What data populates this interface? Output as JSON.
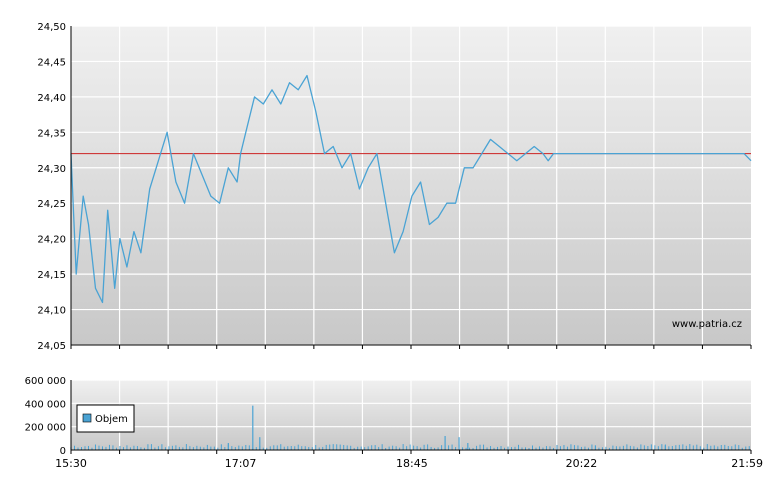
{
  "watermark": "www.patria.cz",
  "colors": {
    "line": "#4aa3d4",
    "reference": "#cc2222",
    "grid": "#ffffff",
    "axis": "#000000",
    "bg_top": "#f0f0f0",
    "bg_bottom": "#c8c8c8",
    "volume": "#4aa3d4"
  },
  "chart_data": [
    {
      "type": "line",
      "ylim": [
        24.05,
        24.5
      ],
      "y_ticks": [
        "24,50",
        "24,45",
        "24,40",
        "24,35",
        "24,30",
        "24,25",
        "24,20",
        "24,15",
        "24,10",
        "24,05"
      ],
      "reference_line": 24.32,
      "x_range": [
        "15:30",
        "21:59"
      ],
      "series": [
        {
          "x": [
            "15:30",
            "15:33",
            "15:37",
            "15:40",
            "15:44",
            "15:48",
            "15:51",
            "15:55",
            "15:58",
            "16:02",
            "16:06",
            "16:10",
            "16:15",
            "16:20",
            "16:25",
            "16:30",
            "16:35",
            "16:40",
            "16:45",
            "16:50",
            "16:55",
            "17:00",
            "17:05",
            "17:07",
            "17:10",
            "17:15",
            "17:20",
            "17:25",
            "17:30",
            "17:35",
            "17:40",
            "17:45",
            "17:50",
            "17:55",
            "18:00",
            "18:05",
            "18:10",
            "18:15",
            "18:20",
            "18:25",
            "18:30",
            "18:35",
            "18:40",
            "18:45",
            "18:50",
            "18:55",
            "19:00",
            "19:05",
            "19:10",
            "19:15",
            "19:20",
            "19:25",
            "19:30",
            "19:35",
            "19:40",
            "19:45",
            "19:50",
            "19:55",
            "20:00",
            "20:03",
            "20:06",
            "20:10",
            "20:15",
            "20:20",
            "20:22",
            "20:25",
            "20:30",
            "20:35",
            "20:40",
            "20:45",
            "20:50",
            "20:55",
            "21:00",
            "21:05",
            "21:10",
            "21:15",
            "21:20",
            "21:25",
            "21:30",
            "21:35",
            "21:40",
            "21:45",
            "21:50",
            "21:55",
            "21:59"
          ],
          "y": [
            24.32,
            24.15,
            24.26,
            24.22,
            24.13,
            24.11,
            24.24,
            24.13,
            24.2,
            24.16,
            24.21,
            24.18,
            24.27,
            24.31,
            24.35,
            24.28,
            24.25,
            24.32,
            24.29,
            24.26,
            24.25,
            24.3,
            24.28,
            24.32,
            24.35,
            24.4,
            24.39,
            24.41,
            24.39,
            24.42,
            24.41,
            24.43,
            24.38,
            24.32,
            24.33,
            24.3,
            24.32,
            24.27,
            24.3,
            24.32,
            24.25,
            24.18,
            24.21,
            24.26,
            24.28,
            24.22,
            24.23,
            24.25,
            24.25,
            24.3,
            24.3,
            24.32,
            24.34,
            24.33,
            24.32,
            24.31,
            24.32,
            24.33,
            24.32,
            24.31,
            24.32,
            24.32,
            24.32,
            24.32,
            24.32,
            24.32,
            24.32,
            24.32,
            24.32,
            24.32,
            24.32,
            24.32,
            24.32,
            24.32,
            24.32,
            24.32,
            24.32,
            24.32,
            24.32,
            24.32,
            24.32,
            24.32,
            24.32,
            24.32,
            24.31
          ]
        }
      ]
    },
    {
      "type": "bar",
      "ylim": [
        0,
        600000
      ],
      "y_ticks": [
        "600 000",
        "400 000",
        "200 000",
        "0"
      ],
      "x_ticks": [
        "15:30",
        "17:07",
        "18:45",
        "20:22",
        "21:59"
      ],
      "legend": "Objem",
      "spikes": [
        {
          "t": "15:30",
          "v": 25000
        },
        {
          "t": "17:00",
          "v": 60000
        },
        {
          "t": "17:14",
          "v": 380000
        },
        {
          "t": "17:18",
          "v": 110000
        },
        {
          "t": "19:04",
          "v": 120000
        },
        {
          "t": "19:12",
          "v": 110000
        },
        {
          "t": "19:17",
          "v": 60000
        },
        {
          "t": "20:30",
          "v": 40000
        },
        {
          "t": "21:10",
          "v": 40000
        }
      ]
    }
  ]
}
